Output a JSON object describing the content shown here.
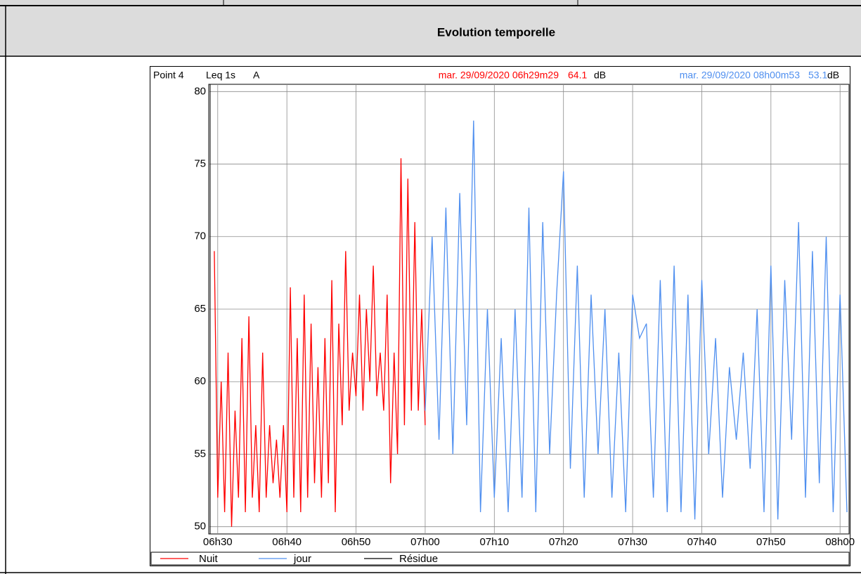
{
  "section_title": "Evolution temporelle",
  "chart_data": {
    "type": "line",
    "point_label": "Point 4",
    "measure_label": "Leq 1s",
    "weighting": "A",
    "cursors": [
      {
        "label": "mar. 29/09/2020 06h29m29",
        "value": 64.1,
        "unit": "dB",
        "color": "#ff0000"
      },
      {
        "label": "mar. 29/09/2020 08h00m53",
        "value": 53.1,
        "unit": "dB",
        "color": "#4f8fef"
      }
    ],
    "xlim": [
      28.7,
      121.3
    ],
    "xticks": [
      {
        "value": 30,
        "label": "06h30"
      },
      {
        "value": 40,
        "label": "06h40"
      },
      {
        "value": 50,
        "label": "06h50"
      },
      {
        "value": 60,
        "label": "07h00"
      },
      {
        "value": 70,
        "label": "07h10"
      },
      {
        "value": 80,
        "label": "07h20"
      },
      {
        "value": 90,
        "label": "07h30"
      },
      {
        "value": 100,
        "label": "07h40"
      },
      {
        "value": 110,
        "label": "07h50"
      },
      {
        "value": 120,
        "label": "08h00"
      }
    ],
    "ylim": [
      49.5,
      80.5
    ],
    "yticks": [
      50,
      55,
      60,
      65,
      70,
      75,
      80
    ],
    "grid": true,
    "series": [
      {
        "name": "Nuit",
        "color": "#ff0000",
        "x": [
          29.5,
          30,
          30.5,
          31,
          31.5,
          32,
          32.5,
          33,
          33.5,
          34,
          34.5,
          35,
          35.5,
          36,
          36.5,
          37,
          37.5,
          38,
          38.5,
          39,
          39.5,
          40,
          40.5,
          41,
          41.5,
          42,
          42.5,
          43,
          43.5,
          44,
          44.5,
          45,
          45.5,
          46,
          46.5,
          47,
          47.5,
          48,
          48.5,
          49,
          49.5,
          50,
          50.5,
          51,
          51.5,
          52,
          52.5,
          53,
          53.5,
          54,
          54.5,
          55,
          55.5,
          56,
          56.5,
          57,
          57.5,
          58,
          58.5,
          59,
          59.5,
          60
        ],
        "values": [
          69,
          52,
          60,
          51,
          62,
          50,
          58,
          52,
          63,
          51,
          64.5,
          52,
          57,
          51,
          62,
          52,
          57,
          53,
          56,
          52,
          57,
          51,
          66.5,
          52,
          63,
          51,
          66,
          52,
          64,
          53,
          61,
          52,
          63,
          53,
          67,
          51,
          64,
          57,
          69,
          58,
          62,
          59,
          66,
          58,
          65,
          60,
          68,
          59,
          62,
          58,
          66,
          53,
          62,
          55,
          75.4,
          57,
          74,
          58,
          71,
          58,
          65,
          57
        ]
      },
      {
        "name": "jour",
        "color": "#4f8fef",
        "x": [
          60,
          61,
          62,
          63,
          64,
          65,
          66,
          67,
          68,
          69,
          70,
          71,
          72,
          73,
          74,
          75,
          76,
          77,
          78,
          79,
          80,
          81,
          82,
          83,
          84,
          85,
          86,
          87,
          88,
          89,
          90,
          91,
          92,
          93,
          94,
          95,
          96,
          97,
          98,
          99,
          100,
          101,
          102,
          103,
          104,
          105,
          106,
          107,
          108,
          109,
          110,
          111,
          112,
          113,
          114,
          115,
          116,
          117,
          118,
          119,
          120,
          121
        ],
        "values": [
          58,
          70,
          56,
          72,
          55,
          73,
          57,
          78,
          51,
          65,
          52,
          63,
          51,
          65,
          52,
          72,
          51,
          71,
          55,
          66,
          74.5,
          54,
          68,
          52,
          66,
          55,
          65,
          52,
          62,
          51,
          66,
          63,
          64,
          52,
          67,
          51,
          68,
          51,
          66,
          50.5,
          67,
          55,
          63,
          52,
          61,
          56,
          62,
          54,
          65,
          51,
          68,
          50.5,
          67,
          56,
          71,
          52,
          69,
          53,
          70,
          51,
          66,
          51
        ]
      },
      {
        "name": "Résidue",
        "color": "#000000",
        "x": [],
        "values": []
      }
    ]
  }
}
